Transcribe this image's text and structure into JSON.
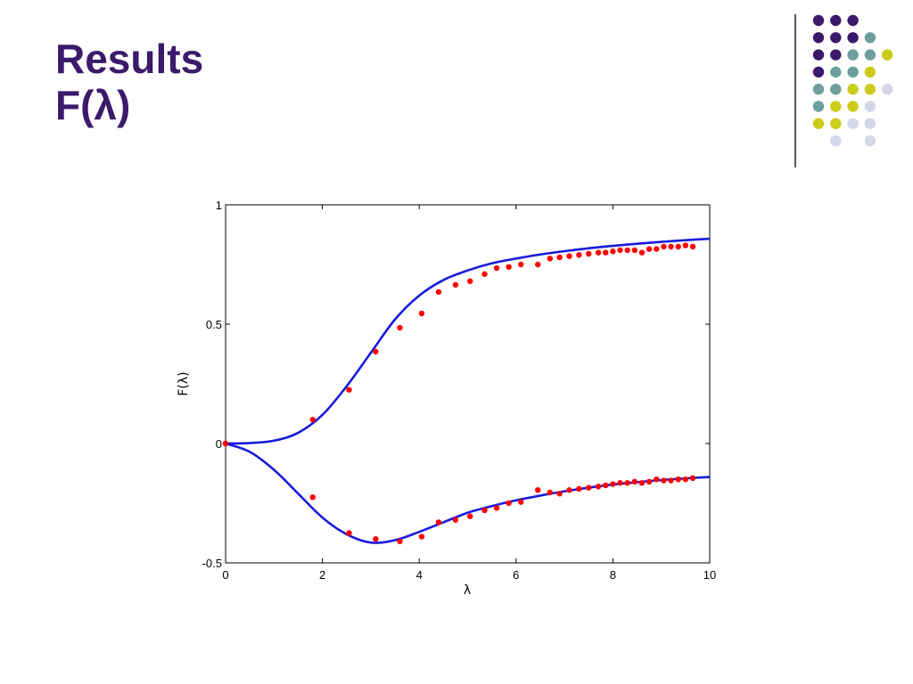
{
  "slide": {
    "title_line1": "Results",
    "title_line2": "F(λ)"
  },
  "colors": {
    "title": "#3b1a6b",
    "curve": "#1a1adb",
    "points": "#ff0000",
    "dot_purple": "#3b1a6b",
    "dot_teal": "#6e9e9e",
    "dot_yellow": "#cccc1a",
    "dot_lavender": "#d6d6ea"
  },
  "decor": {
    "dot_grid": [
      [
        "dot_purple",
        "dot_purple",
        "dot_purple",
        null,
        null
      ],
      [
        "dot_purple",
        "dot_purple",
        "dot_purple",
        "dot_teal",
        null
      ],
      [
        "dot_purple",
        "dot_purple",
        "dot_teal",
        "dot_teal",
        "dot_yellow"
      ],
      [
        "dot_purple",
        "dot_teal",
        "dot_teal",
        "dot_yellow",
        null
      ],
      [
        "dot_teal",
        "dot_teal",
        "dot_yellow",
        "dot_yellow",
        "dot_lavender"
      ],
      [
        "dot_teal",
        "dot_yellow",
        "dot_yellow",
        "dot_lavender",
        null
      ],
      [
        "dot_yellow",
        "dot_yellow",
        "dot_lavender",
        "dot_lavender",
        null
      ],
      [
        null,
        "dot_lavender",
        null,
        "dot_lavender",
        null
      ]
    ]
  },
  "chart_data": {
    "type": "line",
    "title": "",
    "xlabel": "λ",
    "ylabel": "F(λ)",
    "xlim": [
      0,
      10
    ],
    "ylim": [
      -0.5,
      1
    ],
    "xticks": [
      0,
      2,
      4,
      6,
      8,
      10
    ],
    "yticks": [
      -0.5,
      0,
      0.5,
      1
    ],
    "xtick_labels": [
      "0",
      "2",
      "4",
      "6",
      "8",
      "10"
    ],
    "ytick_labels": [
      "-0.5",
      "0",
      "0.5",
      "1"
    ],
    "grid": false,
    "legend": "none",
    "series": [
      {
        "kind": "line",
        "color_key": "curve",
        "x": [
          0,
          0.5,
          1.0,
          1.5,
          2.0,
          2.5,
          3.0,
          3.5,
          4.0,
          4.5,
          5.0,
          5.5,
          6.0,
          6.5,
          7.0,
          7.5,
          8.0,
          8.5,
          9.0,
          9.5,
          10.0
        ],
        "y": [
          0,
          0.002,
          0.012,
          0.045,
          0.12,
          0.24,
          0.38,
          0.52,
          0.62,
          0.685,
          0.725,
          0.755,
          0.775,
          0.792,
          0.806,
          0.818,
          0.828,
          0.837,
          0.845,
          0.852,
          0.858
        ]
      },
      {
        "kind": "line",
        "color_key": "curve",
        "x": [
          0,
          0.5,
          1.0,
          1.5,
          2.0,
          2.5,
          3.0,
          3.5,
          4.0,
          4.5,
          5.0,
          5.5,
          6.0,
          6.5,
          7.0,
          7.5,
          8.0,
          8.5,
          9.0,
          9.5,
          10.0
        ],
        "y": [
          0,
          -0.035,
          -0.11,
          -0.21,
          -0.31,
          -0.38,
          -0.415,
          -0.405,
          -0.37,
          -0.33,
          -0.29,
          -0.262,
          -0.238,
          -0.218,
          -0.2,
          -0.185,
          -0.172,
          -0.162,
          -0.153,
          -0.146,
          -0.14
        ]
      },
      {
        "kind": "scatter",
        "color_key": "points",
        "x": [
          0,
          1.8,
          2.55,
          3.1,
          3.6,
          4.05,
          4.4,
          4.75,
          5.05,
          5.35,
          5.6,
          5.85,
          6.1,
          6.45,
          6.7,
          6.9,
          7.1,
          7.3,
          7.5,
          7.7,
          7.85,
          8.0,
          8.15,
          8.3,
          8.45,
          8.6,
          8.75,
          8.9,
          9.05,
          9.2,
          9.35,
          9.5,
          9.65
        ],
        "y": [
          0,
          0.1,
          0.225,
          0.385,
          0.485,
          0.545,
          0.635,
          0.665,
          0.68,
          0.71,
          0.735,
          0.74,
          0.75,
          0.75,
          0.775,
          0.78,
          0.785,
          0.79,
          0.795,
          0.8,
          0.8,
          0.805,
          0.81,
          0.81,
          0.81,
          0.8,
          0.815,
          0.815,
          0.825,
          0.825,
          0.825,
          0.83,
          0.825
        ]
      },
      {
        "kind": "scatter",
        "color_key": "points",
        "x": [
          0,
          1.8,
          2.55,
          3.1,
          3.6,
          4.05,
          4.4,
          4.75,
          5.05,
          5.35,
          5.6,
          5.85,
          6.1,
          6.45,
          6.7,
          6.9,
          7.1,
          7.3,
          7.5,
          7.7,
          7.85,
          8.0,
          8.15,
          8.3,
          8.45,
          8.6,
          8.75,
          8.9,
          9.05,
          9.2,
          9.35,
          9.5,
          9.65
        ],
        "y": [
          0,
          -0.225,
          -0.375,
          -0.4,
          -0.41,
          -0.39,
          -0.33,
          -0.32,
          -0.305,
          -0.28,
          -0.27,
          -0.25,
          -0.245,
          -0.195,
          -0.205,
          -0.21,
          -0.195,
          -0.19,
          -0.185,
          -0.18,
          -0.175,
          -0.17,
          -0.165,
          -0.165,
          -0.16,
          -0.165,
          -0.16,
          -0.15,
          -0.155,
          -0.155,
          -0.15,
          -0.15,
          -0.145
        ]
      }
    ]
  }
}
